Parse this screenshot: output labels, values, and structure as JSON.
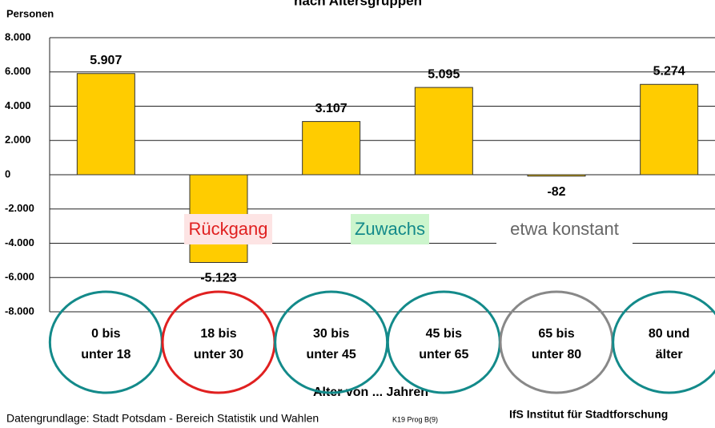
{
  "chart_data": {
    "type": "bar",
    "title": "nach Altersgruppen",
    "y_label": "Personen",
    "x_label": "Alter von ... Jahren",
    "categories": [
      [
        "0 bis",
        "unter 18"
      ],
      [
        "18 bis",
        "unter 30"
      ],
      [
        "30 bis",
        "unter 45"
      ],
      [
        "45 bis",
        "unter 65"
      ],
      [
        "65 bis",
        "unter 80"
      ],
      [
        "80 und",
        "älter"
      ]
    ],
    "values": [
      5907,
      -5123,
      3107,
      5095,
      -82,
      5274
    ],
    "value_labels": [
      "5.907",
      "-5.123",
      "3.107",
      "5.095",
      "-82",
      "5.274"
    ],
    "color": "#ffcc00",
    "circle_colors": [
      "#138a8a",
      "#e02020",
      "#138a8a",
      "#138a8a",
      "#888888",
      "#138a8a"
    ],
    "ylim": [
      -8000,
      8000
    ],
    "yticks": [
      {
        "value": -8000,
        "label": "-8.000"
      },
      {
        "value": -6000,
        "label": "-6.000"
      },
      {
        "value": -4000,
        "label": "-4.000"
      },
      {
        "value": -2000,
        "label": "-2.000"
      },
      0,
      {
        "value": 2000,
        "label": "2.000"
      },
      {
        "value": 4000,
        "label": "4.000"
      },
      {
        "value": 6000,
        "label": "6.000"
      },
      {
        "value": 8000,
        "label": "8.000"
      }
    ],
    "grid": true,
    "annotations": [
      {
        "text": "Rückgang",
        "color": "#e02020",
        "background": "#fde4e4"
      },
      {
        "text": "Zuwachs",
        "color": "#138a8a",
        "background": "#ccf5cc"
      },
      {
        "text": "etwa konstant",
        "color": "#666666",
        "background": "#ffffff"
      }
    ],
    "source": "Datengrundlage: Stadt Potsdam - Bereich Statistik und Wahlen",
    "code": "K19 Prog B(9)",
    "institute": "IfS Institut für Stadtforschung"
  }
}
